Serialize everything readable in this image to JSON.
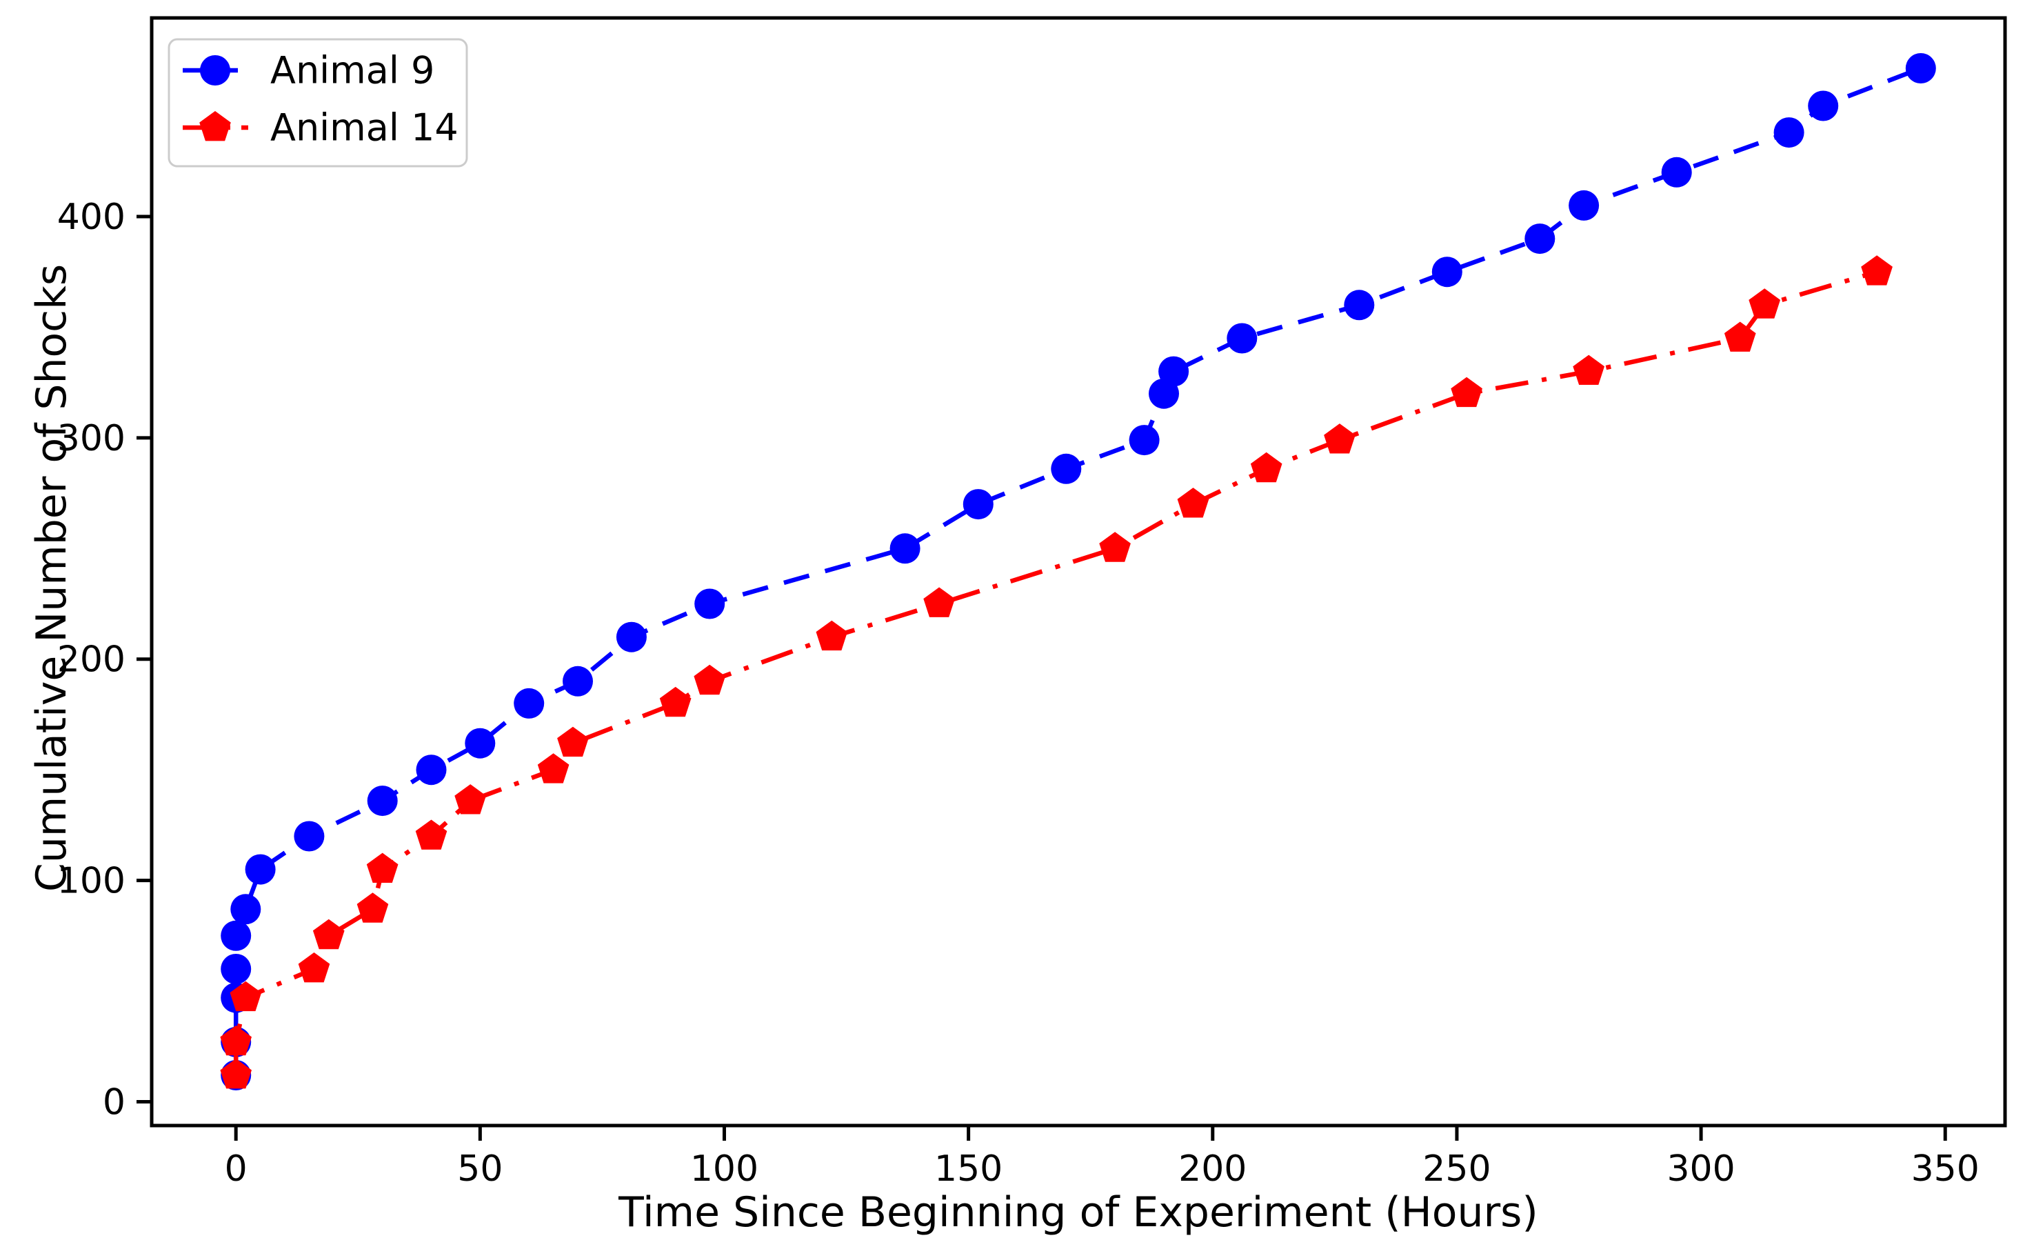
{
  "figure": {
    "background": "#ffffff",
    "plot_background": "#ffffff",
    "spine_color": "#000000"
  },
  "chart_data": {
    "type": "line",
    "title": "",
    "xlabel": "Time Since Beginning of Experiment (Hours)",
    "ylabel": "Cumulative Number of Shocks",
    "xlim": [
      -17.25,
      362.25
    ],
    "ylim": [
      -10.75,
      489.75
    ],
    "x_ticks": [
      0,
      50,
      100,
      150,
      200,
      250,
      300,
      350
    ],
    "y_ticks": [
      0,
      100,
      200,
      300,
      400
    ],
    "grid": false,
    "legend_position": "upper left",
    "series": [
      {
        "name": "Animal 9",
        "color": "#0000ff",
        "linestyle": "dashed",
        "marker": "circle",
        "x": [
          0,
          0,
          0,
          0,
          0,
          2,
          5,
          15,
          30,
          40,
          50,
          60,
          70,
          81,
          97,
          137,
          152,
          170,
          186,
          190,
          192,
          206,
          230,
          248,
          267,
          276,
          295,
          318,
          325,
          345
        ],
        "y": [
          12,
          27,
          47,
          60,
          75,
          87,
          105,
          120,
          136,
          150,
          162,
          180,
          190,
          210,
          225,
          250,
          270,
          286,
          299,
          320,
          330,
          345,
          360,
          375,
          390,
          405,
          420,
          438,
          450,
          467
        ]
      },
      {
        "name": "Animal 14",
        "color": "#ff0000",
        "linestyle": "dashdot",
        "marker": "pentagon",
        "x": [
          0,
          0,
          2,
          16,
          19,
          28,
          30,
          40,
          48,
          65,
          69,
          90,
          97,
          122,
          144,
          180,
          196,
          211,
          226,
          252,
          277,
          308,
          313,
          336
        ],
        "y": [
          12,
          27,
          47,
          60,
          75,
          87,
          105,
          120,
          136,
          150,
          162,
          180,
          190,
          210,
          225,
          250,
          270,
          286,
          299,
          320,
          330,
          345,
          360,
          375
        ]
      }
    ]
  }
}
